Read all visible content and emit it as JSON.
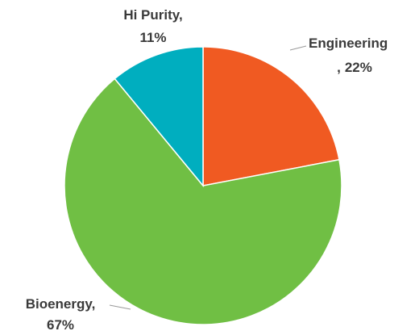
{
  "chart_data": {
    "type": "pie",
    "categories": [
      "Engineering",
      "Bioenergy",
      "Hi Purity"
    ],
    "values": [
      22,
      67,
      11
    ],
    "value_labels": [
      "22%",
      "67%",
      "11%"
    ],
    "label_separator": ",",
    "colors": [
      "#f05a22",
      "#70bf44",
      "#00aebf"
    ]
  }
}
